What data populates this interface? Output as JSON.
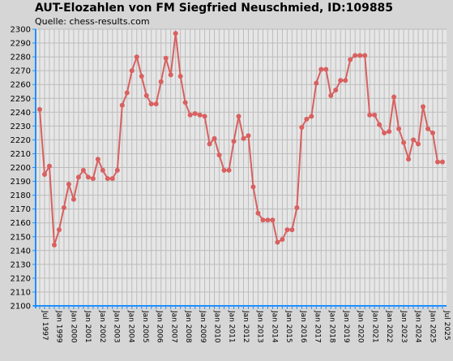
{
  "header": {
    "title": "AUT-Elozahlen von FM Siegfried Neuschmied, ID:109885",
    "subtitle": "Quelle: chess-results.com"
  },
  "colors": {
    "background": "#d6d6d6",
    "plot_background": "#e6e6e6",
    "grid": "#bcbcbc",
    "axis": "#1e90ff",
    "line": "#d96060"
  },
  "chart_data": {
    "type": "line",
    "title": "AUT-Elozahlen von FM Siegfried Neuschmied, ID:109885",
    "subtitle": "Quelle: chess-results.com",
    "xlabel": "",
    "ylabel": "",
    "ylim": [
      2100,
      2300
    ],
    "yticks": [
      2100,
      2110,
      2120,
      2130,
      2140,
      2150,
      2160,
      2170,
      2180,
      2190,
      2200,
      2210,
      2220,
      2230,
      2240,
      2250,
      2260,
      2270,
      2280,
      2290,
      2300
    ],
    "grid": true,
    "legend": "none",
    "x_labels": [
      "Jul 1997",
      "Jan 1999",
      "Jan 2000",
      "Jan 2001",
      "Jan 2002",
      "Jan 2003",
      "Jan 2004",
      "Jan 2005",
      "Jan 2006",
      "Jan 2007",
      "Jan 2008",
      "Jan 2009",
      "Jan 2010",
      "Jan 2011",
      "Jan 2012",
      "Jan 2013",
      "Jan 2014",
      "Jan 2015",
      "Jan 2016",
      "Jan 2017",
      "Jan 2018",
      "Jan 2019",
      "Jan 2020",
      "Jan 2021",
      "Jan 2022",
      "Jan 2023",
      "Jan 2024",
      "Jan 2025",
      "Jul 2025"
    ],
    "series": [
      {
        "values": [
          2242,
          2195,
          2201,
          2144,
          2155,
          2171,
          2188,
          2177,
          2193,
          2198,
          2193,
          2192,
          2206,
          2198,
          2192,
          2192,
          2198,
          2245,
          2254,
          2270,
          2280,
          2266,
          2252,
          2246,
          2246,
          2262,
          2279,
          2267,
          2297,
          2266,
          2247,
          2238,
          2239,
          2238,
          2237,
          2217,
          2221,
          2209,
          2198,
          2198,
          2219,
          2237,
          2221,
          2223,
          2186,
          2167,
          2162,
          2162,
          2162,
          2146,
          2148,
          2155,
          2155,
          2171,
          2229,
          2235,
          2237,
          2261,
          2271,
          2271,
          2252,
          2256,
          2263,
          2263,
          2278,
          2281,
          2281,
          2281,
          2238,
          2238,
          2231,
          2225,
          2226,
          2251,
          2228,
          2218,
          2206,
          2220,
          2217,
          2244,
          2228,
          2225,
          2204,
          2204
        ]
      }
    ]
  }
}
